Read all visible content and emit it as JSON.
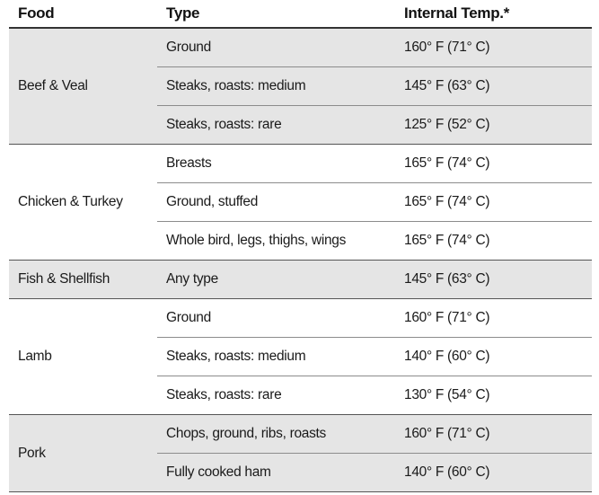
{
  "headers": {
    "food": "Food",
    "type": "Type",
    "temp": "Internal Temp.*"
  },
  "groups": [
    {
      "food": "Beef & Veal",
      "rows": [
        {
          "type": "Ground",
          "temp": "160° F (71° C)"
        },
        {
          "type": "Steaks, roasts: medium",
          "temp": "145° F (63° C)"
        },
        {
          "type": "Steaks, roasts: rare",
          "temp": "125° F (52° C)"
        }
      ]
    },
    {
      "food": "Chicken & Turkey",
      "rows": [
        {
          "type": "Breasts",
          "temp": "165° F (74° C)"
        },
        {
          "type": "Ground, stuffed",
          "temp": "165° F (74° C)"
        },
        {
          "type": "Whole bird, legs, thighs, wings",
          "temp": "165° F (74° C)"
        }
      ]
    },
    {
      "food": "Fish & Shellfish",
      "rows": [
        {
          "type": "Any type",
          "temp": "145° F (63° C)"
        }
      ]
    },
    {
      "food": "Lamb",
      "rows": [
        {
          "type": "Ground",
          "temp": "160° F (71° C)"
        },
        {
          "type": "Steaks, roasts: medium",
          "temp": "140° F (60° C)"
        },
        {
          "type": "Steaks, roasts: rare",
          "temp": "130° F (54° C)"
        }
      ]
    },
    {
      "food": "Pork",
      "rows": [
        {
          "type": "Chops, ground, ribs, roasts",
          "temp": "160° F (71° C)"
        },
        {
          "type": "Fully cooked ham",
          "temp": "140° F (60° C)"
        }
      ]
    }
  ]
}
